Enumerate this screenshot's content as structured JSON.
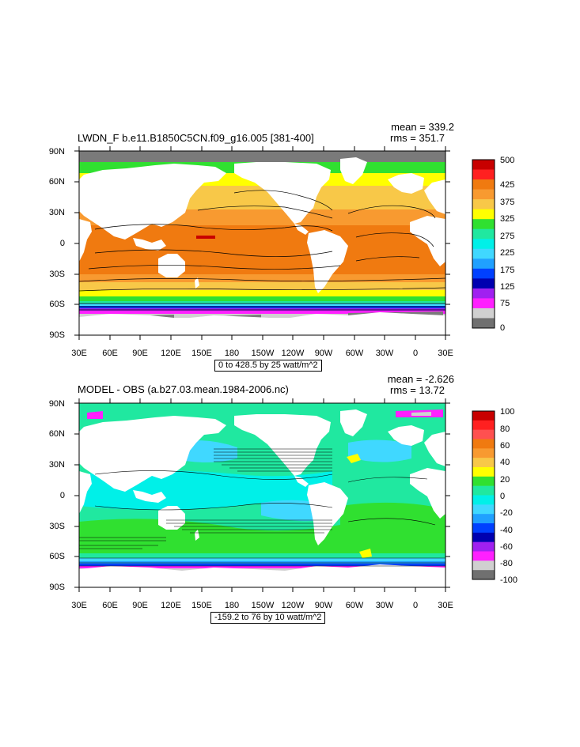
{
  "panels": [
    {
      "title": "LWDN_F b.e11.B1850C5CN.f09_g16.005 [381-400]",
      "mean_label": "mean = 339.2",
      "rms_label": "rms = 351.7",
      "contour_info": "0 to 428.5 by 25 watt/m^2",
      "colorbar_labels": [
        "500",
        "425",
        "375",
        "325",
        "275",
        "225",
        "175",
        "125",
        "75",
        "0"
      ],
      "colorbar_colors": [
        "#c80000",
        "#ff2020",
        "#f07a10",
        "#f89a30",
        "#f8c848",
        "#ffff00",
        "#30e030",
        "#20e8a0",
        "#00f0e8",
        "#40d8ff",
        "#20a0ff",
        "#0040ff",
        "#0000b0",
        "#a020f0",
        "#ff20ff",
        "#d0d0d0",
        "#707070"
      ]
    },
    {
      "title": "MODEL - OBS (a.b27.03.mean.1984-2006.nc)",
      "mean_label": "mean = -2.626",
      "rms_label": "rms = 13.72",
      "contour_info": "-159.2 to 76 by 10 watt/m^2",
      "colorbar_labels": [
        "100",
        "80",
        "60",
        "40",
        "20",
        "0",
        "-20",
        "-40",
        "-60",
        "-80",
        "-100"
      ],
      "colorbar_colors": [
        "#c80000",
        "#ff2020",
        "#ff5050",
        "#f07a10",
        "#f89a30",
        "#f8c848",
        "#ffff00",
        "#30e030",
        "#20e8a0",
        "#00f0e8",
        "#40d8ff",
        "#20a0ff",
        "#0040ff",
        "#0000b0",
        "#a020f0",
        "#ff20ff",
        "#d0d0d0",
        "#707070"
      ]
    }
  ],
  "lat_labels": [
    "90N",
    "60N",
    "30N",
    "0",
    "30S",
    "60S",
    "90S"
  ],
  "lon_labels": [
    "30E",
    "60E",
    "90E",
    "120E",
    "150E",
    "180",
    "150W",
    "120W",
    "90W",
    "60W",
    "30W",
    "0",
    "30E"
  ],
  "colors": {
    "land": "#ffffff",
    "ice": "#7a7a7a",
    "contour": "#000000"
  }
}
